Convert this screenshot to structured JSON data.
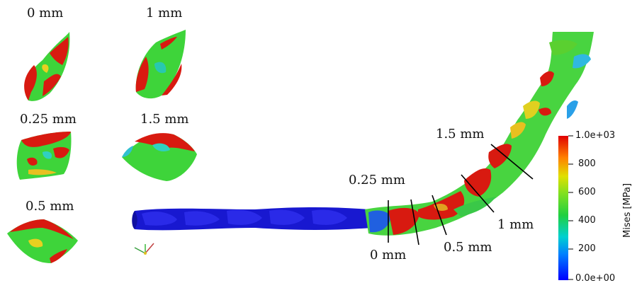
{
  "section_labels": {
    "s0": "0 mm",
    "s1": "1 mm",
    "s025": "0.25 mm",
    "s15": "1.5 mm",
    "s05": "0.5 mm"
  },
  "main_cut_labels": {
    "c15": "1.5 mm",
    "c025": "0.25 mm",
    "c1": "1 mm",
    "c05": "0.5 mm",
    "c0": "0 mm"
  },
  "colorbar": {
    "title": "Mises [MPa]",
    "ticks": [
      "1.0e+03",
      "800",
      "600",
      "400",
      "200",
      "0.0e+00"
    ],
    "colors": [
      "#0000ff",
      "#00c8ff",
      "#00d060",
      "#60dc20",
      "#d8d800",
      "#ff6000",
      "#e00000"
    ]
  }
}
